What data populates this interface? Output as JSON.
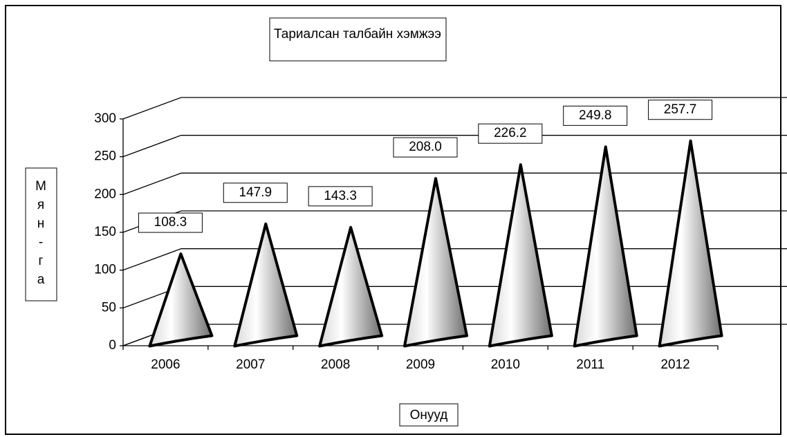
{
  "chart_data": {
    "type": "cone",
    "title": "Тариалсан талбайн хэмжээ",
    "x_label": "Онууд",
    "y_label": "Мян-га",
    "categories": [
      "2006",
      "2007",
      "2008",
      "2009",
      "2010",
      "2011",
      "2012"
    ],
    "values": [
      108.3,
      147.9,
      143.3,
      208.0,
      226.2,
      249.8,
      257.7
    ],
    "value_labels": [
      "108.3",
      "147.9",
      "143.3",
      "208.0",
      "226.2",
      "249.8",
      "257.7"
    ],
    "ylim": [
      0,
      300
    ],
    "yticks": [
      0,
      50,
      100,
      150,
      200,
      250,
      300
    ],
    "grid": true
  }
}
